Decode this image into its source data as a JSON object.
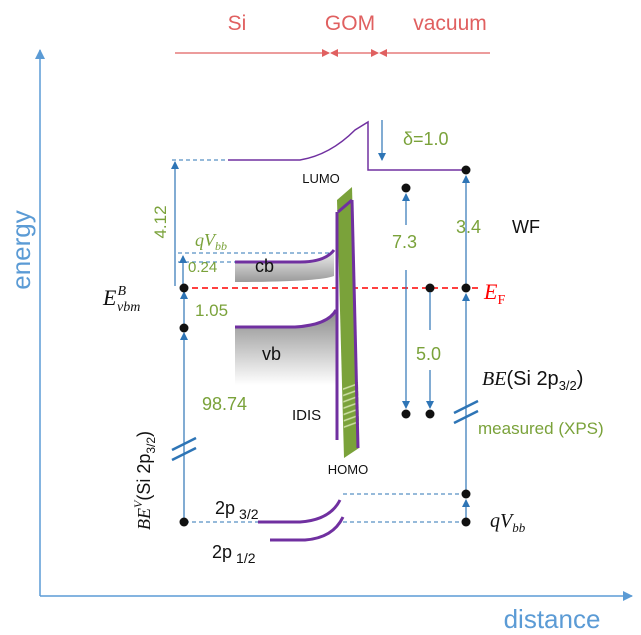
{
  "regions": {
    "si": "Si",
    "gom": "GOM",
    "vacuum": "vacuum"
  },
  "axes": {
    "y": "energy",
    "x": "distance"
  },
  "bands": {
    "lumo": "LUMO",
    "homo": "HOMO",
    "cb": "cb",
    "vb": "vb",
    "idis": "IDIS",
    "ef_main": "E",
    "ef_sub": "F",
    "wf": "WF"
  },
  "values": {
    "delta": "δ=1.0",
    "v412": "4.12",
    "v024": "0.24",
    "v105": "1.05",
    "v9874": "98.74",
    "v73": "7.3",
    "v34": "3.4",
    "v50": "5.0",
    "measured": "measured (XPS)"
  },
  "symbols": {
    "qvbb_q": "qV",
    "qvbb_sub": "bb",
    "evbm_main": "E",
    "evbm_sup": "B",
    "evbm_sub": "vbm",
    "bev_main": "BE",
    "bev_sup": "V",
    "bev_paren": "(Si 2p",
    "bev_sub": "3/2",
    "bev_close": ")",
    "be_main": "BE",
    "be_paren": "(Si 2p",
    "be_sub": "3/2",
    "be_close": ")",
    "p32_main": "2p",
    "p32_sub": "3/2",
    "p12_main": "2p",
    "p12_sub": "1/2"
  },
  "colors": {
    "axis": "#5b9bd5",
    "dashed": "#2e75b6",
    "purple": "#7030a0",
    "red": "#ff0000",
    "region": "#e06060",
    "green": "#7aa23a",
    "darkgreen": "#6a9e2a",
    "text": "#111111"
  }
}
